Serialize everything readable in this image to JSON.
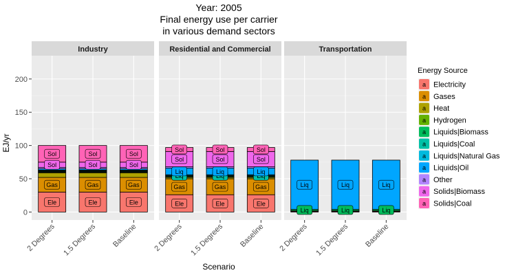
{
  "chart_data": {
    "type": "bar",
    "title_lines": [
      "Year: 2005",
      "Final energy use per carrier",
      "in various demand sectors"
    ],
    "xlabel": "Scenario",
    "ylabel": "EJ/yr",
    "ylim": [
      -12,
      235
    ],
    "yticks": [
      0,
      50,
      100,
      150,
      200
    ],
    "grid": true,
    "legend_position": "right",
    "legend_title": "Energy Source",
    "legend_key_glyph": "a",
    "categories": [
      "2 Degrees",
      "1.5 Degrees",
      "Baseline"
    ],
    "carriers": [
      {
        "name": "Electricity",
        "color": "#F8766D"
      },
      {
        "name": "Gases",
        "color": "#DB8E00"
      },
      {
        "name": "Heat",
        "color": "#AEA200"
      },
      {
        "name": "Hydrogen",
        "color": "#64B200"
      },
      {
        "name": "Liquids|Biomass",
        "color": "#00BD5C"
      },
      {
        "name": "Liquids|Coal",
        "color": "#00C1A7"
      },
      {
        "name": "Liquids|Natural Gas",
        "color": "#00BADE"
      },
      {
        "name": "Liquids|Oil",
        "color": "#00A6FF"
      },
      {
        "name": "Other",
        "color": "#B385FF"
      },
      {
        "name": "Solids|Biomass",
        "color": "#EF67EB"
      },
      {
        "name": "Solids|Coal",
        "color": "#FF63B6"
      }
    ],
    "panels": [
      {
        "title": "Industry",
        "stack": [
          {
            "carrier": "Electricity",
            "value": 30,
            "label": "Ele"
          },
          {
            "carrier": "Gases",
            "value": 22,
            "label": "Gas"
          },
          {
            "carrier": "Heat",
            "value": 7,
            "label": ""
          },
          {
            "carrier": "Hydrogen",
            "value": 1,
            "label": ""
          },
          {
            "carrier": "Liquids|Biomass",
            "value": 1,
            "label": ""
          },
          {
            "carrier": "Liquids|Coal",
            "value": 1,
            "label": ""
          },
          {
            "carrier": "Liquids|Natural Gas",
            "value": 1,
            "label": ""
          },
          {
            "carrier": "Liquids|Oil",
            "value": 2,
            "label": ""
          },
          {
            "carrier": "Other",
            "value": 2,
            "label": ""
          },
          {
            "carrier": "Solids|Biomass",
            "value": 8,
            "label": "Sol"
          },
          {
            "carrier": "Solids|Coal",
            "value": 25,
            "label": "Sol"
          }
        ]
      },
      {
        "title": "Residential and Commercial",
        "stack": [
          {
            "carrier": "Electricity",
            "value": 26,
            "label": "Ele"
          },
          {
            "carrier": "Gases",
            "value": 24,
            "label": "Gas"
          },
          {
            "carrier": "Heat",
            "value": 2,
            "label": ""
          },
          {
            "carrier": "Hydrogen",
            "value": 1,
            "label": ""
          },
          {
            "carrier": "Liquids|Biomass",
            "value": 1,
            "label": ""
          },
          {
            "carrier": "Liquids|Coal",
            "value": 1,
            "label": "Liq"
          },
          {
            "carrier": "Liquids|Natural Gas",
            "value": 1,
            "label": ""
          },
          {
            "carrier": "Liquids|Oil",
            "value": 10,
            "label": "Liq"
          },
          {
            "carrier": "Other",
            "value": 2,
            "label": ""
          },
          {
            "carrier": "Solids|Biomass",
            "value": 23,
            "label": "Sol"
          },
          {
            "carrier": "Solids|Coal",
            "value": 6,
            "label": "Sol"
          }
        ]
      },
      {
        "title": "Transportation",
        "stack": [
          {
            "carrier": "Electricity",
            "value": 1,
            "label": ""
          },
          {
            "carrier": "Gases",
            "value": 1,
            "label": ""
          },
          {
            "carrier": "Liquids|Biomass",
            "value": 2,
            "label": "Liq"
          },
          {
            "carrier": "Liquids|Oil",
            "value": 74,
            "label": "Liq"
          }
        ]
      }
    ]
  }
}
